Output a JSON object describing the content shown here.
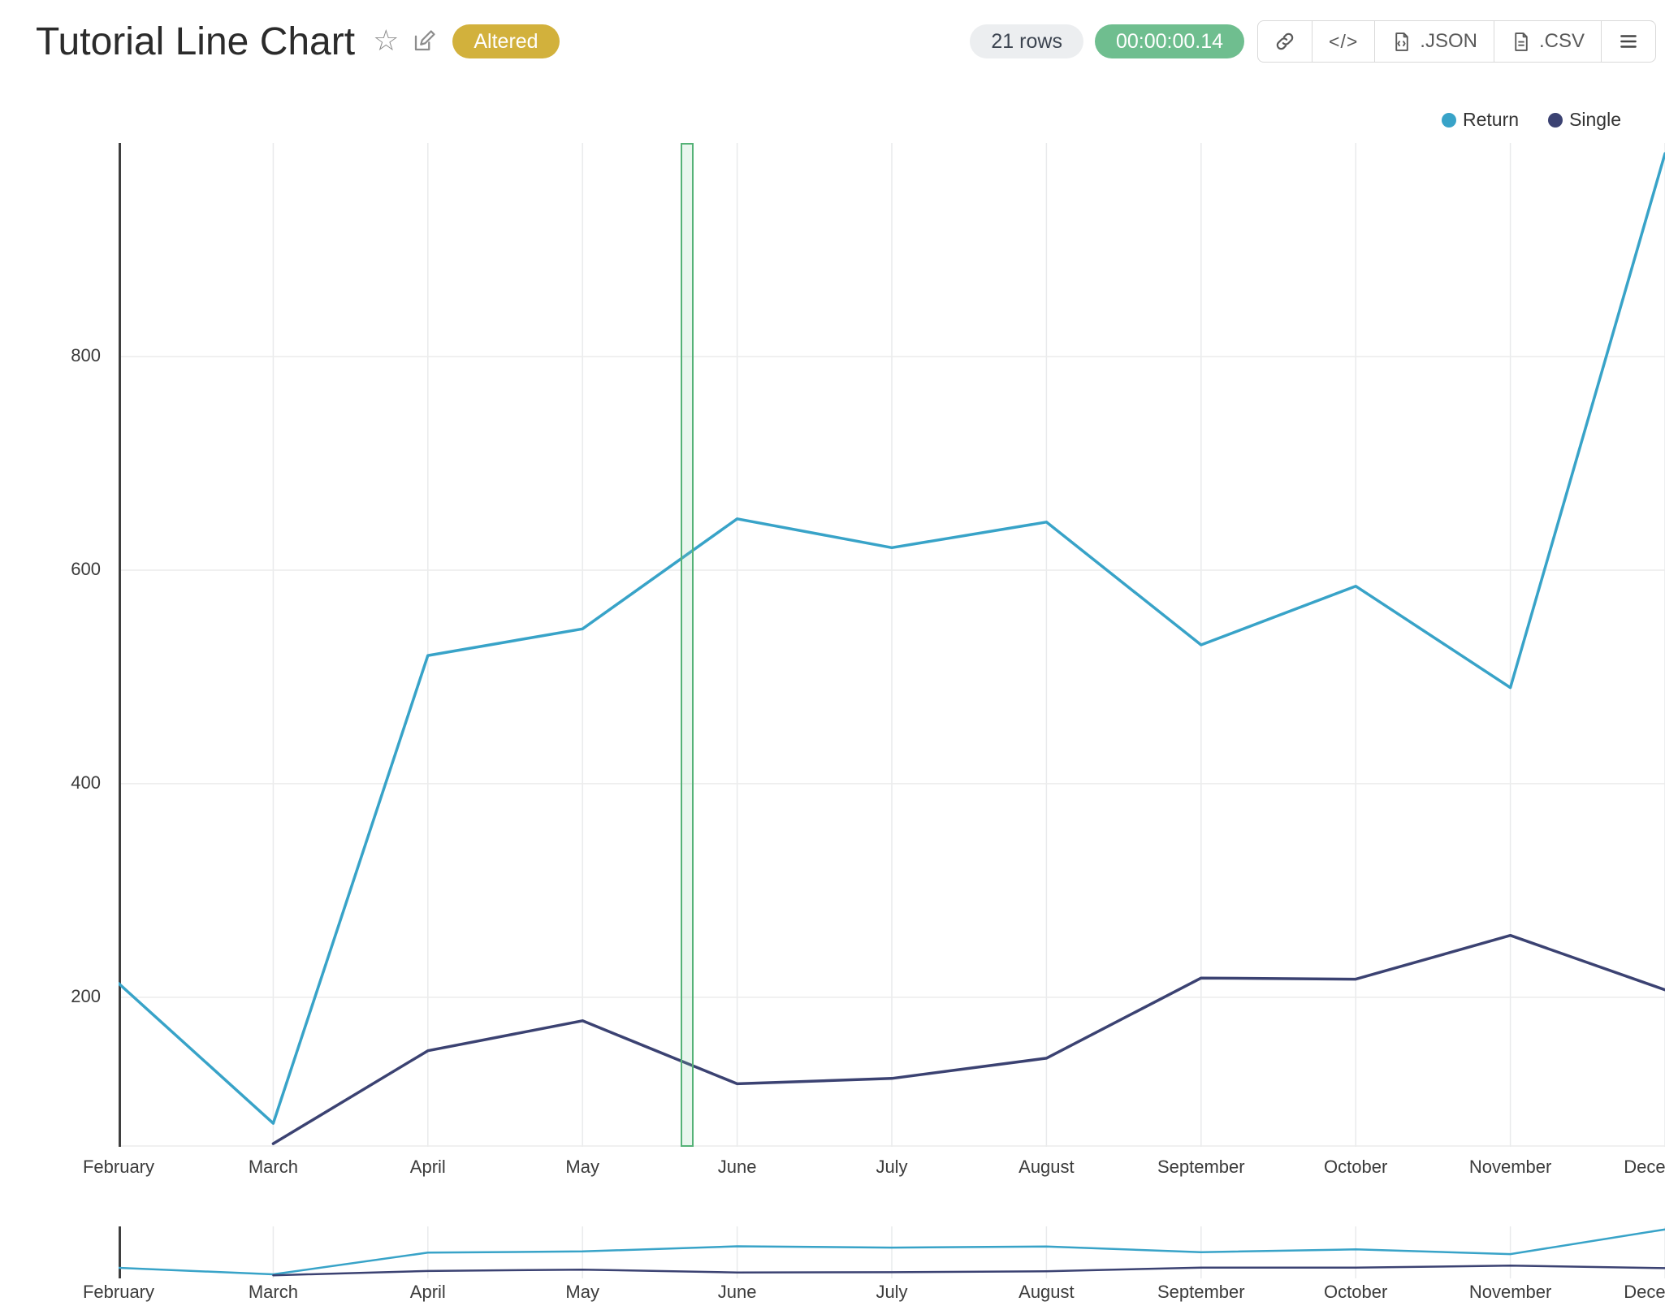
{
  "header": {
    "title": "Tutorial Line Chart",
    "altered_badge": "Altered",
    "rows_badge": "21 rows",
    "timer_badge": "00:00:00.14",
    "actions": {
      "code_label": "</>",
      "json_label": ".JSON",
      "csv_label": ".CSV"
    },
    "icons": [
      "star-icon",
      "edit-icon",
      "link-icon",
      "embed-code-icon",
      "json-file-icon",
      "csv-file-icon",
      "menu-icon"
    ]
  },
  "colors": {
    "altered_gold": "#D2B13C",
    "timer_green": "#6FBE8F",
    "rows_gray": "#ECEEF0",
    "return_line": "#38A3C8",
    "single_line": "#3B4272",
    "selection_green": "#55B277",
    "grid": "#E9EAEC"
  },
  "chart_data": {
    "type": "line",
    "title": "Tutorial Line Chart",
    "xlabel": "",
    "ylabel": "",
    "categories": [
      "February",
      "March",
      "April",
      "May",
      "June",
      "July",
      "August",
      "September",
      "October",
      "November",
      "December"
    ],
    "series": [
      {
        "name": "Return",
        "color": "#38A3C8",
        "values": [
          213,
          82,
          520,
          545,
          648,
          621,
          645,
          530,
          585,
          490,
          990
        ]
      },
      {
        "name": "Single",
        "color": "#3B4272",
        "values": [
          null,
          63,
          150,
          178,
          119,
          124,
          143,
          218,
          217,
          258,
          207
        ]
      }
    ],
    "yticks": [
      200,
      400,
      600,
      800
    ],
    "ylim": [
      60,
      1000
    ],
    "mini_ylim": [
      0,
      1050
    ],
    "grid": true,
    "legend_position": "top-right",
    "has_overview_strip": true,
    "selection_band_between": [
      "May",
      "June"
    ]
  }
}
